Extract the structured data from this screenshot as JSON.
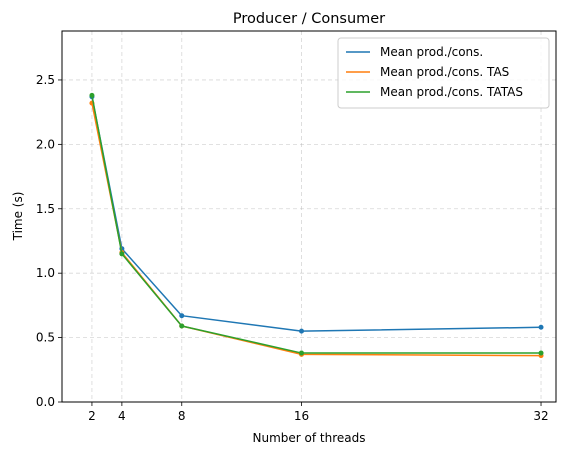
{
  "chart_data": {
    "type": "line",
    "title": "Producer / Consumer",
    "xlabel": "Number of threads",
    "ylabel": "Time (s)",
    "x": [
      2,
      4,
      8,
      16,
      32
    ],
    "x_ticks": [
      "2",
      "4",
      "8",
      "16",
      "32"
    ],
    "xlim": [
      0,
      33
    ],
    "ylim": [
      0,
      2.88
    ],
    "y_ticks": [
      "0.0",
      "0.5",
      "1.0",
      "1.5",
      "2.0",
      "2.5"
    ],
    "y_tick_values": [
      0,
      0.5,
      1.0,
      1.5,
      2.0,
      2.5
    ],
    "grid": true,
    "legend_position": "top-right",
    "series": [
      {
        "name": "Mean prod./cons.",
        "color": "#1f77b4",
        "values": [
          2.37,
          1.19,
          0.67,
          0.55,
          0.58
        ]
      },
      {
        "name": "Mean prod./cons. TAS",
        "color": "#ff7f0e",
        "values": [
          2.32,
          1.16,
          0.59,
          0.37,
          0.36
        ]
      },
      {
        "name": "Mean prod./cons. TATAS",
        "color": "#2ca02c",
        "values": [
          2.38,
          1.15,
          0.59,
          0.38,
          0.38
        ]
      }
    ]
  }
}
